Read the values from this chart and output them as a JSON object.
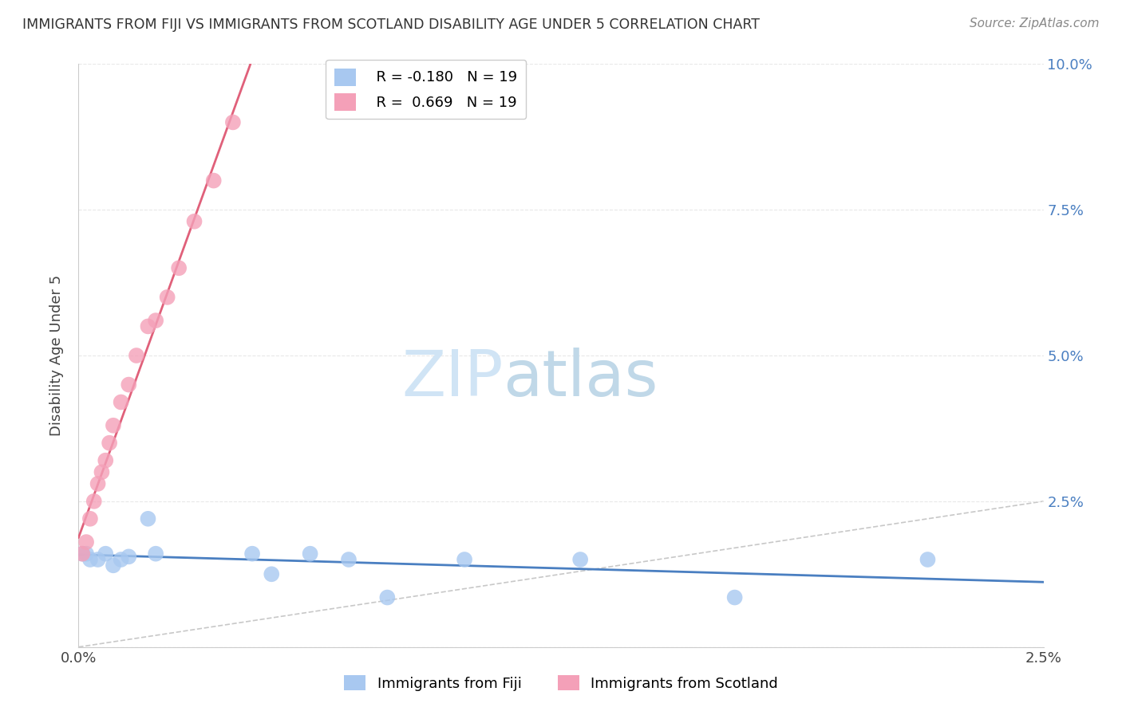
{
  "title": "IMMIGRANTS FROM FIJI VS IMMIGRANTS FROM SCOTLAND DISABILITY AGE UNDER 5 CORRELATION CHART",
  "source": "Source: ZipAtlas.com",
  "ylabel": "Disability Age Under 5",
  "r_fiji": -0.18,
  "r_scotland": 0.669,
  "n_fiji": 19,
  "n_scotland": 19,
  "xmin": 0.0,
  "xmax": 0.025,
  "ymin": 0.0,
  "ymax": 0.1,
  "yticks": [
    0.0,
    0.025,
    0.05,
    0.075,
    0.1
  ],
  "ytick_labels": [
    "",
    "2.5%",
    "5.0%",
    "7.5%",
    "10.0%"
  ],
  "xtick_labels": [
    "0.0%",
    "2.5%"
  ],
  "color_fiji": "#a8c8f0",
  "color_scotland": "#f4a0b8",
  "trendline_fiji": "#4a7fc1",
  "trendline_scotland": "#e0607a",
  "diagonal_color": "#c8c8c8",
  "fiji_x": [
    0.0001,
    0.0002,
    0.0003,
    0.0005,
    0.0007,
    0.0009,
    0.0011,
    0.0013,
    0.0018,
    0.002,
    0.0045,
    0.005,
    0.006,
    0.007,
    0.008,
    0.01,
    0.013,
    0.017,
    0.022
  ],
  "fiji_y": [
    0.016,
    0.016,
    0.015,
    0.015,
    0.016,
    0.014,
    0.015,
    0.0155,
    0.022,
    0.016,
    0.016,
    0.0125,
    0.016,
    0.015,
    0.0085,
    0.015,
    0.015,
    0.0085,
    0.015
  ],
  "scotland_x": [
    0.0001,
    0.0002,
    0.0003,
    0.0004,
    0.0005,
    0.0006,
    0.0007,
    0.0008,
    0.0009,
    0.0011,
    0.0013,
    0.0015,
    0.0018,
    0.002,
    0.0023,
    0.0026,
    0.003,
    0.0035,
    0.004
  ],
  "scotland_y": [
    0.016,
    0.018,
    0.022,
    0.025,
    0.028,
    0.03,
    0.032,
    0.035,
    0.038,
    0.042,
    0.045,
    0.05,
    0.055,
    0.056,
    0.06,
    0.065,
    0.073,
    0.08,
    0.09
  ],
  "watermark_zip": "ZIP",
  "watermark_atlas": "atlas",
  "watermark_color_zip": "#d0e4f5",
  "watermark_color_atlas": "#c0d8e8",
  "background_color": "#ffffff",
  "grid_color": "#e8e8e8"
}
